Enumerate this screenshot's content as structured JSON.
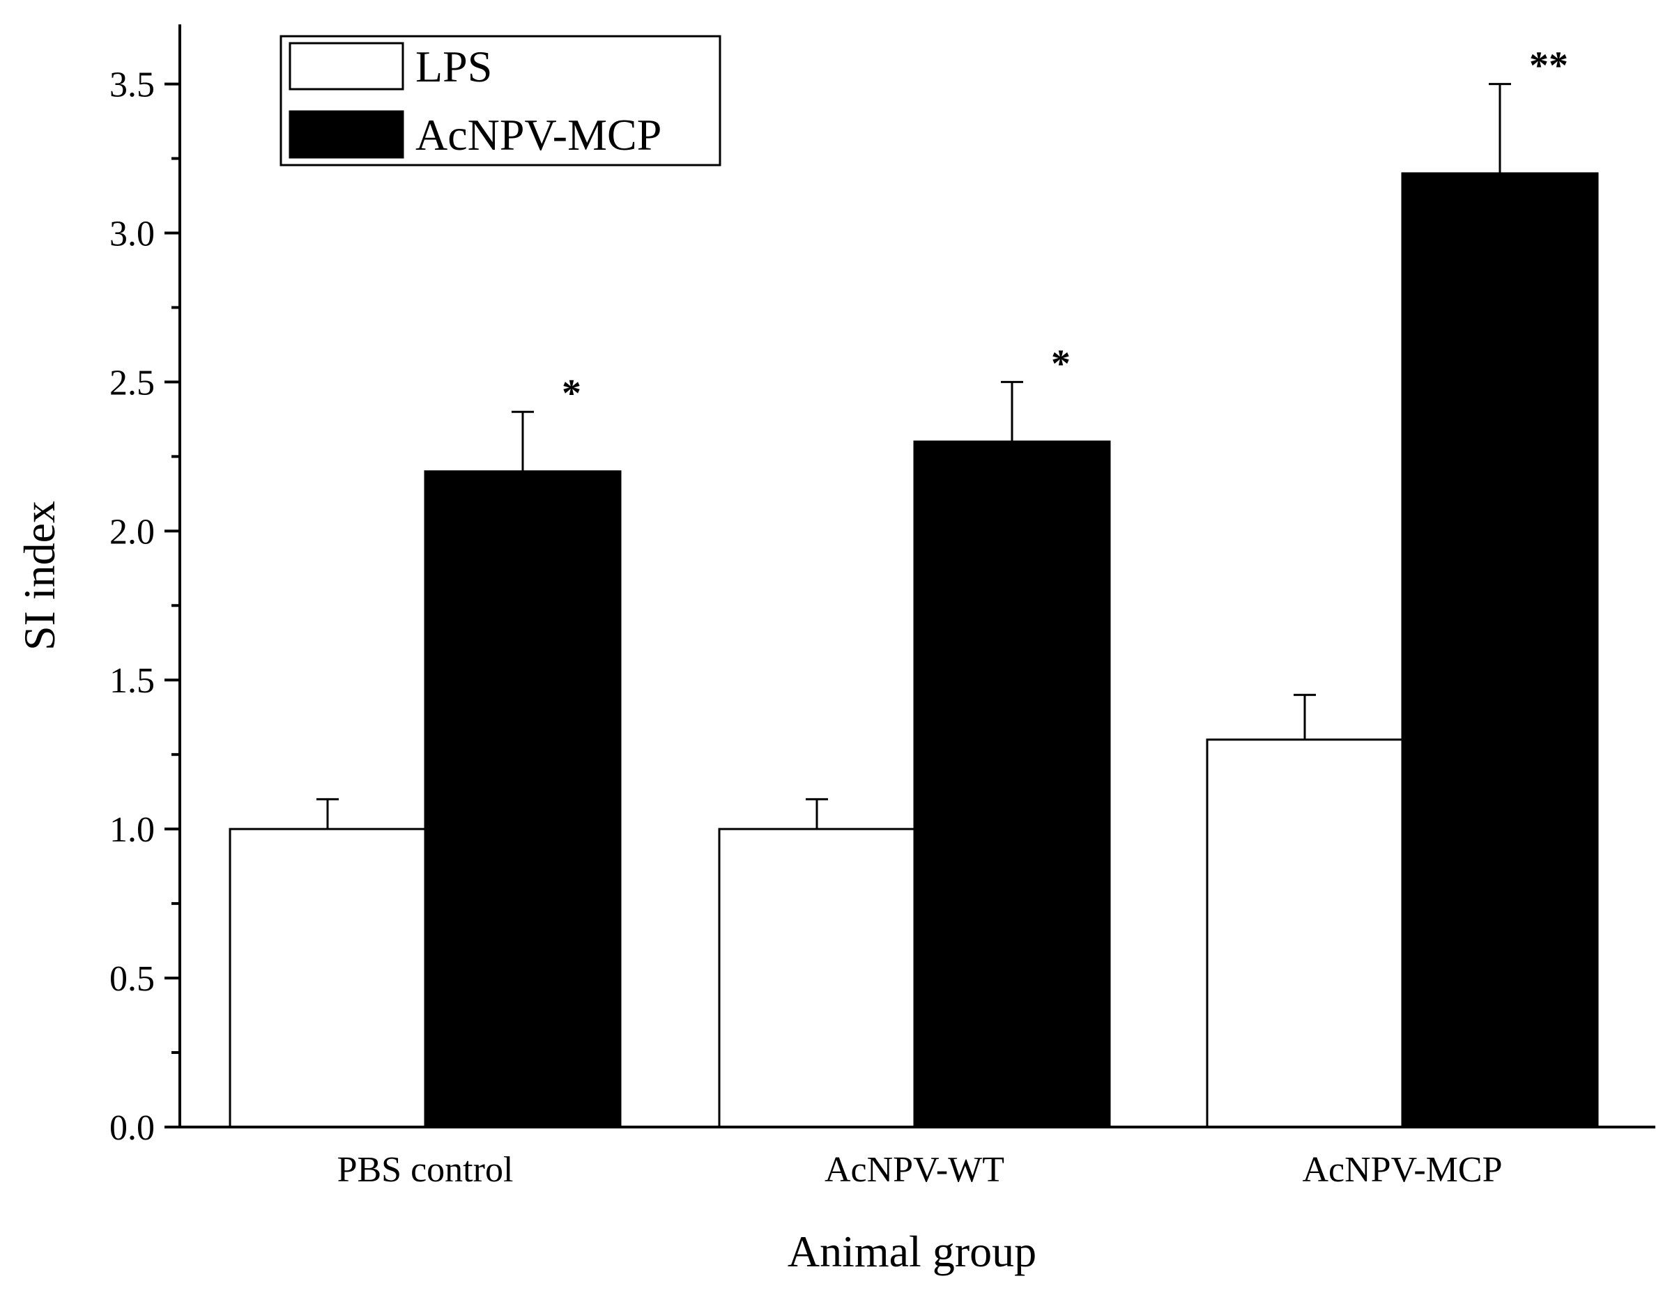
{
  "chart_data": {
    "type": "bar",
    "title": "",
    "xlabel": "Animal group",
    "ylabel": "SI index",
    "ylim": [
      0,
      3.7
    ],
    "yticks": [
      "0.0",
      "0.5",
      "1.0",
      "1.5",
      "2.0",
      "2.5",
      "3.0",
      "3.5"
    ],
    "categories": [
      "PBS control",
      "AcNPV-WT",
      "AcNPV-MCP"
    ],
    "series": [
      {
        "name": "LPS",
        "values": [
          1.0,
          1.0,
          1.3
        ],
        "errors": [
          0.1,
          0.1,
          0.15
        ],
        "fill": "#ffffff",
        "significance": [
          "",
          "",
          ""
        ]
      },
      {
        "name": "AcNPV-MCP",
        "values": [
          2.2,
          2.3,
          3.2
        ],
        "errors": [
          0.2,
          0.2,
          0.3
        ],
        "fill": "#000000",
        "significance": [
          "*",
          "*",
          "**"
        ]
      }
    ],
    "legend": {
      "position": "top-left",
      "entries": [
        "LPS",
        "AcNPV-MCP"
      ]
    },
    "grid": false
  }
}
